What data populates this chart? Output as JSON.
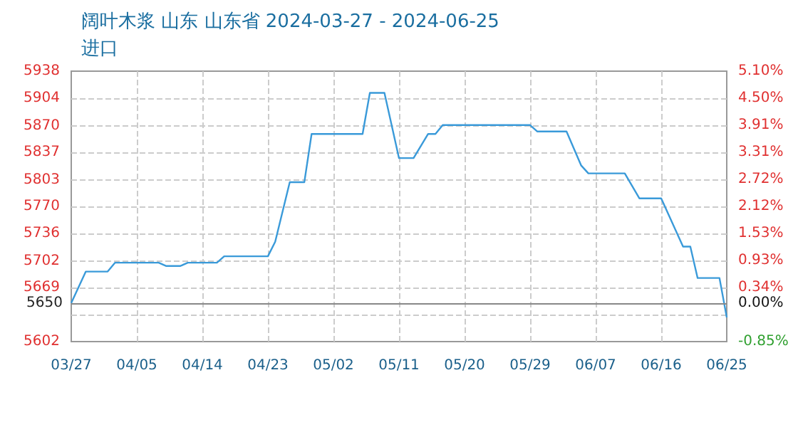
{
  "chart_data": {
    "type": "line",
    "title": "阔叶木浆 山东 山东省 2024-03-27 - 2024-06-25",
    "subtitle": "进口",
    "x": [
      "2024-03-27",
      "2024-03-29",
      "2024-04-01",
      "2024-04-02",
      "2024-04-08",
      "2024-04-09",
      "2024-04-11",
      "2024-04-12",
      "2024-04-16",
      "2024-04-17",
      "2024-04-23",
      "2024-04-24",
      "2024-04-26",
      "2024-04-28",
      "2024-04-29",
      "2024-05-06",
      "2024-05-07",
      "2024-05-09",
      "2024-05-11",
      "2024-05-13",
      "2024-05-15",
      "2024-05-16",
      "2024-05-17",
      "2024-05-29",
      "2024-05-30",
      "2024-06-03",
      "2024-06-05",
      "2024-06-06",
      "2024-06-11",
      "2024-06-13",
      "2024-06-16",
      "2024-06-19",
      "2024-06-20",
      "2024-06-21",
      "2024-06-24",
      "2024-06-25"
    ],
    "series": [
      {
        "color": "#3a9ad9",
        "values": [
          5650,
          5689,
          5689,
          5700,
          5700,
          5696,
          5696,
          5700,
          5700,
          5708,
          5708,
          5726,
          5800,
          5800,
          5860,
          5860,
          5911,
          5911,
          5830,
          5830,
          5860,
          5860,
          5871,
          5871,
          5863,
          5863,
          5821,
          5811,
          5811,
          5780,
          5780,
          5720,
          5720,
          5681,
          5681,
          5632
        ]
      }
    ],
    "xlim": [
      "2024-03-27",
      "2024-06-25"
    ],
    "xticks": [
      {
        "value": "2024-03-27",
        "label": "03/27"
      },
      {
        "value": "2024-04-05",
        "label": "04/05"
      },
      {
        "value": "2024-04-14",
        "label": "04/14"
      },
      {
        "value": "2024-04-23",
        "label": "04/23"
      },
      {
        "value": "2024-05-02",
        "label": "05/02"
      },
      {
        "value": "2024-05-11",
        "label": "05/11"
      },
      {
        "value": "2024-05-20",
        "label": "05/20"
      },
      {
        "value": "2024-05-29",
        "label": "05/29"
      },
      {
        "value": "2024-06-07",
        "label": "06/07"
      },
      {
        "value": "2024-06-16",
        "label": "06/16"
      },
      {
        "value": "2024-06-25",
        "label": "06/25"
      }
    ],
    "ylim": [
      5602,
      5938
    ],
    "yticks": [
      5602,
      {
        "value": 5635.6,
        "label": null
      },
      5669,
      5702,
      5736,
      5770,
      5803,
      5837,
      5870,
      5904,
      5938
    ],
    "y2lim": [
      -0.85,
      5.1
    ],
    "y2ticks": [
      {
        "value": -0.85,
        "label": "-0.85%"
      },
      {
        "value": 0,
        "label": "0.00%"
      },
      {
        "value": 0.34,
        "label": "0.34%"
      },
      {
        "value": 0.93,
        "label": "0.93%"
      },
      {
        "value": 1.53,
        "label": "1.53%"
      },
      {
        "value": 2.12,
        "label": "2.12%"
      },
      {
        "value": 2.72,
        "label": "2.72%"
      },
      {
        "value": 3.31,
        "label": "3.31%"
      },
      {
        "value": 3.91,
        "label": "3.91%"
      },
      {
        "value": 4.5,
        "label": "4.50%"
      },
      {
        "value": 5.1,
        "label": "5.10%"
      }
    ],
    "ref_lines": [
      {
        "axis": "y",
        "value": 5650,
        "label": "5650",
        "color": "#888888"
      }
    ],
    "grid": true,
    "marker": "none",
    "line_style": "solid"
  }
}
